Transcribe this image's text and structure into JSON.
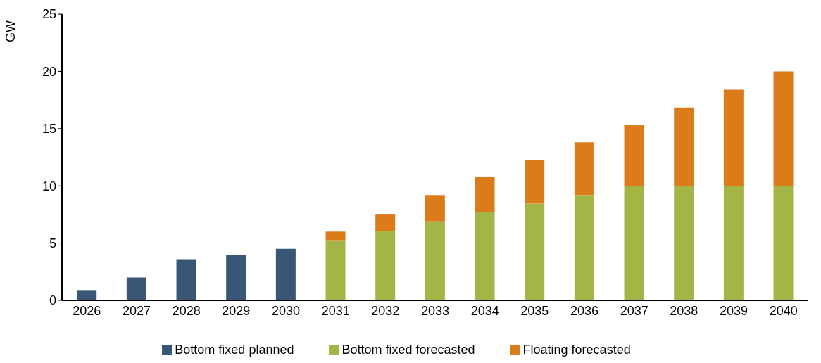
{
  "chart_data": {
    "type": "bar",
    "stacked": true,
    "ylabel": "GW",
    "categories": [
      "2026",
      "2027",
      "2028",
      "2029",
      "2030",
      "2031",
      "2032",
      "2033",
      "2034",
      "2035",
      "2036",
      "2037",
      "2038",
      "2039",
      "2040"
    ],
    "series": [
      {
        "name": "Bottom fixed planned",
        "color": "#3a5676",
        "values": [
          0.9,
          2.0,
          3.6,
          4.0,
          4.5,
          null,
          null,
          null,
          null,
          null,
          null,
          null,
          null,
          null,
          null
        ]
      },
      {
        "name": "Bottom fixed forecasted",
        "color": "#a5b545",
        "values": [
          null,
          null,
          null,
          null,
          null,
          5.25,
          6.05,
          6.9,
          7.7,
          8.45,
          9.2,
          10,
          10,
          10,
          10
        ]
      },
      {
        "name": "Floating forecasted",
        "color": "#dc7b1a",
        "values": [
          null,
          null,
          null,
          null,
          null,
          0.75,
          1.5,
          2.3,
          3.05,
          3.8,
          4.6,
          5.3,
          6.85,
          8.4,
          10
        ]
      }
    ],
    "ylim": [
      0,
      25
    ],
    "yticks": [
      0,
      5,
      10,
      15,
      20,
      25
    ],
    "grid": false,
    "legend": "bottom"
  }
}
